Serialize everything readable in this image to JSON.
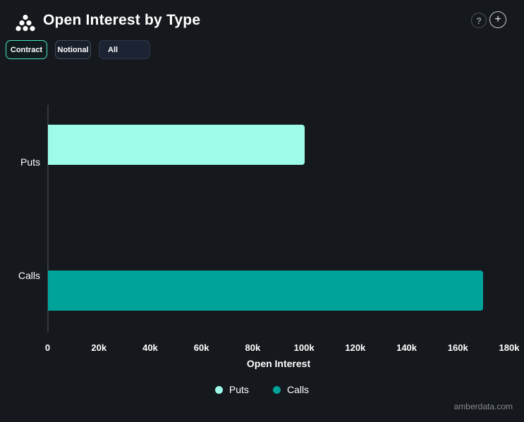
{
  "header": {
    "title": "Open Interest by Type",
    "help_glyph": "?",
    "add_glyph": "+"
  },
  "toolbar": {
    "contract_label": "Contract",
    "notional_label": "Notional",
    "type_filter_value": "All"
  },
  "chart_data": {
    "type": "bar",
    "orientation": "horizontal",
    "title": "Open Interest by Type",
    "categories": [
      "Puts",
      "Calls"
    ],
    "values": [
      100200,
      169700
    ],
    "series_colors": [
      "#9CFBE9",
      "#00A39A"
    ],
    "xlabel": "Open Interest",
    "ylabel": "",
    "xlim": [
      0,
      180000
    ],
    "x_ticks": [
      0,
      20000,
      40000,
      60000,
      80000,
      100000,
      120000,
      140000,
      160000,
      180000
    ],
    "x_tick_labels": [
      "0",
      "20k",
      "40k",
      "60k",
      "80k",
      "100k",
      "120k",
      "140k",
      "160k",
      "180k"
    ],
    "grid": false,
    "legend_position": "bottom",
    "legend": [
      {
        "label": "Puts",
        "color": "#9CFBE9"
      },
      {
        "label": "Calls",
        "color": "#00A39A"
      }
    ]
  },
  "colors": {
    "background": "#15181D",
    "accent_mint": "#49E3C2",
    "puts_bar": "#9CFBE9",
    "calls_bar": "#00A39A",
    "axis_line": "#34383F"
  },
  "footer": {
    "watermark": "amberdata.com"
  }
}
